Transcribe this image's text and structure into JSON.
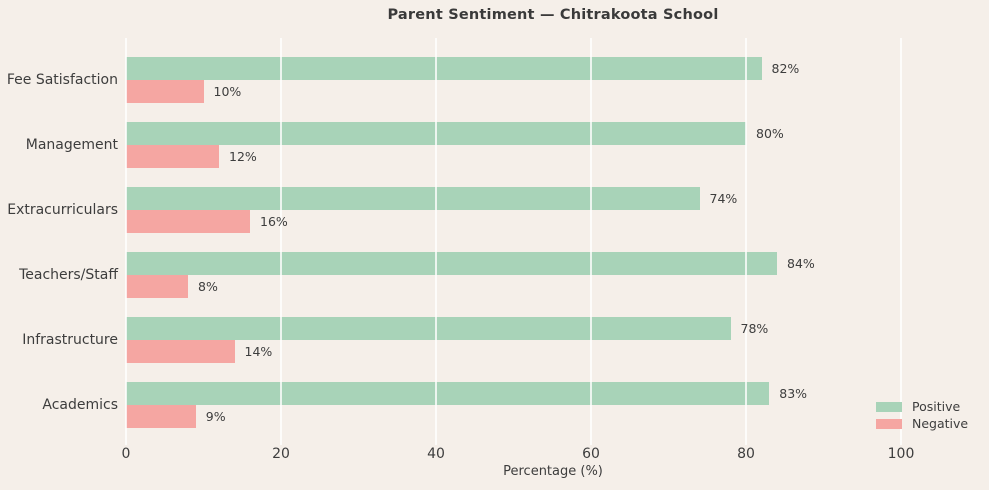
{
  "title": "Parent Sentiment — Chitrakoota School",
  "chart_data": {
    "type": "bar",
    "orientation": "horizontal",
    "title": "Parent Sentiment — Chitrakoota School",
    "xlabel": "Percentage (%)",
    "ylabel": "",
    "categories": [
      "Fee Satisfaction",
      "Management",
      "Extracurriculars",
      "Teachers/Staff",
      "Infrastructure",
      "Academics"
    ],
    "series": [
      {
        "name": "Positive",
        "color": "#a8d3b8",
        "values": [
          82,
          80,
          74,
          84,
          78,
          83
        ]
      },
      {
        "name": "Negative",
        "color": "#f5a6a2",
        "values": [
          10,
          12,
          16,
          8,
          14,
          9
        ]
      }
    ],
    "value_labels": [
      [
        "82%",
        "80%",
        "74%",
        "84%",
        "78%",
        "83%"
      ],
      [
        "10%",
        "12%",
        "16%",
        "8%",
        "14%",
        "9%"
      ]
    ],
    "xticks": [
      "0",
      "20",
      "40",
      "60",
      "80",
      "100"
    ],
    "xtick_values": [
      0,
      20,
      40,
      60,
      80,
      100
    ],
    "xlim": [
      0,
      110
    ],
    "grid": true,
    "legend_position": "lower right",
    "legend_entries": [
      "Positive",
      "Negative"
    ]
  },
  "colors": {
    "background": "#f5efe9",
    "gridline": "#fbf8f5",
    "positive": "#a8d3b8",
    "negative": "#f5a6a2",
    "text": "#3d3d3d"
  }
}
